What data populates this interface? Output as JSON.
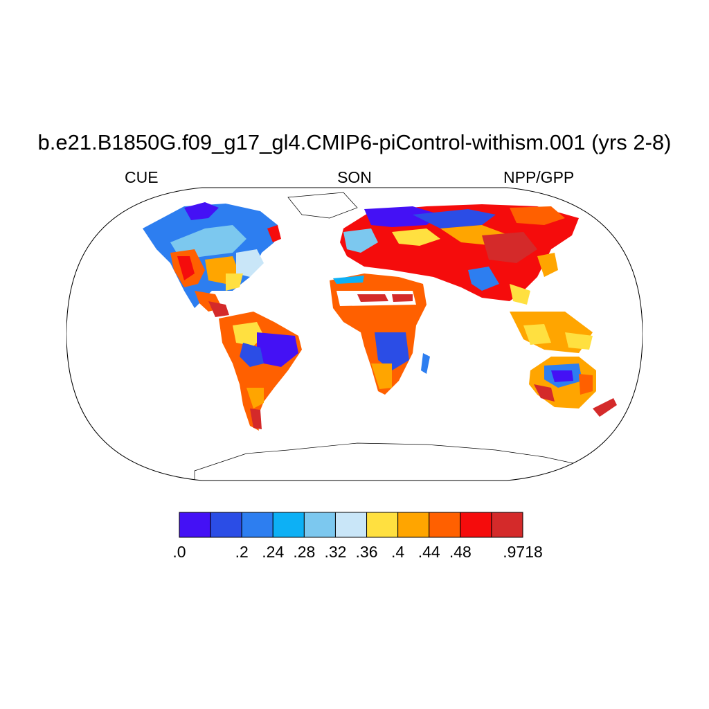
{
  "title": "b.e21.B1850G.f09_g17_gl4.CMIP6-piControl-withism.001 (yrs 2-8)",
  "left_label": "CUE",
  "center_label": "SON",
  "right_label": "NPP/GPP",
  "colorbar": {
    "colors": [
      "#4411f5",
      "#2b4de6",
      "#2d7ef0",
      "#0db0f5",
      "#7cc8ef",
      "#c9e6f8",
      "#ffe040",
      "#ffa500",
      "#ff6000",
      "#f50c0c",
      "#d42a2a"
    ],
    "labels": [
      ".0",
      ".2",
      ".24",
      ".28",
      ".32",
      ".36",
      ".4",
      ".44",
      ".48",
      ".9718"
    ],
    "label_edges": [
      0,
      2,
      3,
      4,
      5,
      6,
      7,
      8,
      9,
      11
    ]
  },
  "map": {
    "projection": "Robinson",
    "variable": "CUE",
    "season": "SON"
  }
}
